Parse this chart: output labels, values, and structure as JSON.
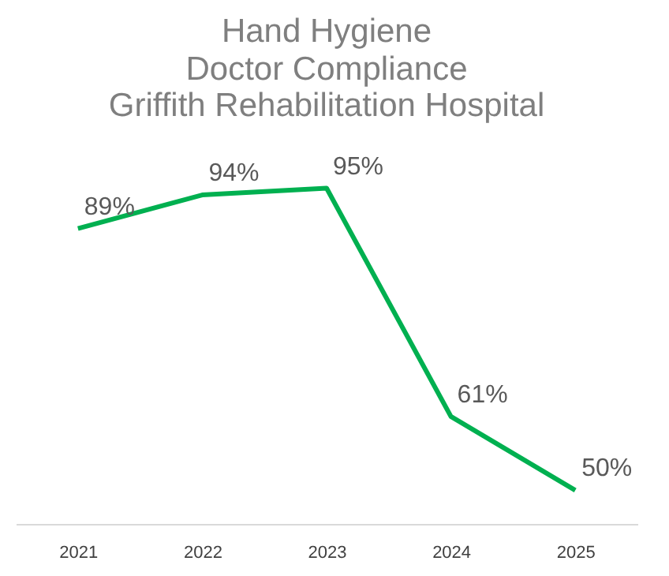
{
  "chart_data": {
    "type": "line",
    "title": "Hand Hygiene",
    "subtitle": "Doctor Compliance",
    "annotations": [
      "Griffith Rehabilitation Hospital"
    ],
    "categories": [
      "2021",
      "2022",
      "2023",
      "2024",
      "2025"
    ],
    "series": [
      {
        "color": "#00b050",
        "values": [
          89,
          94,
          95,
          61,
          50
        ],
        "value_labels": [
          "89%",
          "94%",
          "95%",
          "61%",
          "50%"
        ]
      }
    ],
    "marker": "none",
    "line_style": "solid",
    "grid": false,
    "legend": false,
    "tick_labels": "x"
  }
}
